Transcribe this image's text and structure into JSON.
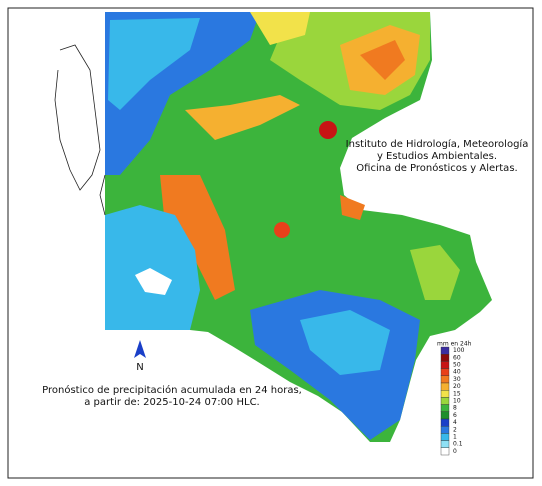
{
  "title_lines": [
    "Instituto de Hidrología, Meteorología",
    "y Estudios Ambientales.",
    "Oficina de Pronósticos y Alertas."
  ],
  "caption_lines": [
    "Pronóstico de precipitación acumulada en 24 horas,",
    "a partir de: 2025-10-24 07:00 HLC."
  ],
  "north_label": "N",
  "legend": {
    "title": "mm en 24h",
    "items": [
      {
        "label": 100,
        "color": "#3b2ea0"
      },
      {
        "label": 60,
        "color": "#8b0a0a"
      },
      {
        "label": 50,
        "color": "#c81414"
      },
      {
        "label": 40,
        "color": "#e8401a"
      },
      {
        "label": 30,
        "color": "#f07a20"
      },
      {
        "label": 20,
        "color": "#f5b030"
      },
      {
        "label": 15,
        "color": "#f2e24a"
      },
      {
        "label": 10,
        "color": "#9ad63c"
      },
      {
        "label": 8,
        "color": "#3cb43c"
      },
      {
        "label": 6,
        "color": "#1f8f2c"
      },
      {
        "label": 4,
        "color": "#1a3fc8"
      },
      {
        "label": 2,
        "color": "#2a78e0"
      },
      {
        "label": 1,
        "color": "#38b8ea"
      },
      {
        "label": 0.1,
        "color": "#8fe0f4"
      },
      {
        "label": 0,
        "color": "#ffffff"
      }
    ]
  }
}
